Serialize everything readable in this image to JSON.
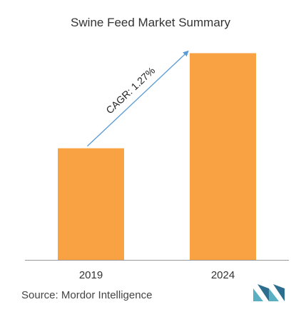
{
  "chart_data": {
    "type": "bar",
    "title": "Swine Feed Market Summary",
    "categories": [
      "2019",
      "2024"
    ],
    "series": [
      {
        "values": [
          54,
          100
        ]
      }
    ],
    "ylim": [
      0,
      105
    ],
    "grid": false,
    "legend": "none",
    "annotations": [
      {
        "text": "CAGR: 1.27%",
        "from": "2019",
        "to": "2024"
      }
    ]
  },
  "source": "Source: Mordor Intelligence",
  "colors": {
    "bar": "#F9A244",
    "arrow": "#5B9BD5",
    "axis": "#999999",
    "logo": "#5AAFC2"
  },
  "icons": {
    "logo": "mordor-intelligence-logo-icon"
  }
}
